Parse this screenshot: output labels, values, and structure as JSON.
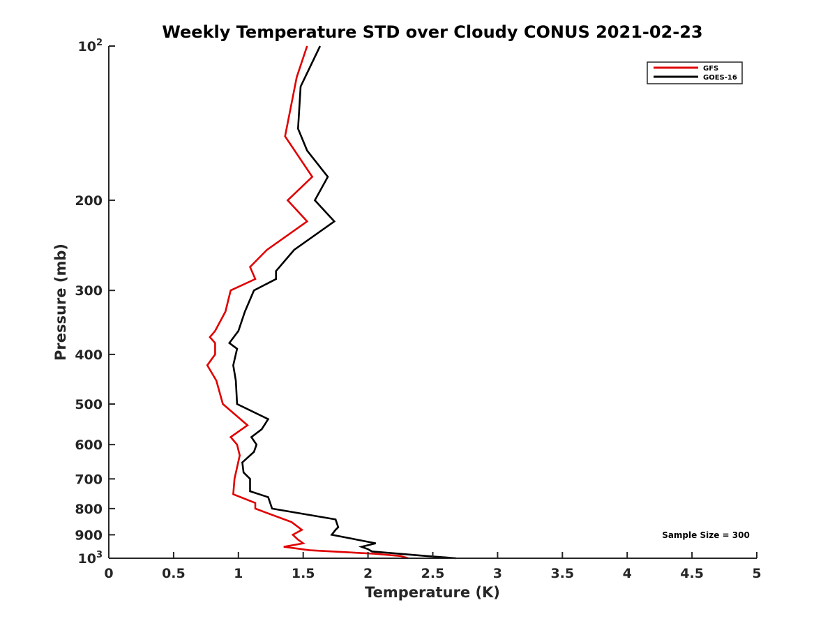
{
  "chart_data": {
    "type": "line",
    "title": "Weekly Temperature STD over Cloudy CONUS 2021-02-23",
    "xlabel": "Temperature (K)",
    "ylabel": "Pressure (mb)",
    "xlim": [
      0,
      5
    ],
    "ylim": [
      100,
      1000
    ],
    "yscale": "log",
    "y_reversed": true,
    "grid": false,
    "legend_position": "top-right",
    "x_ticks": [
      0,
      0.5,
      1,
      1.5,
      2,
      2.5,
      3,
      3.5,
      4,
      4.5,
      5
    ],
    "x_tick_labels": [
      "0",
      "0.5",
      "1",
      "1.5",
      "2",
      "2.5",
      "3",
      "3.5",
      "4",
      "4.5",
      "5"
    ],
    "y_ticks": [
      100,
      200,
      300,
      400,
      500,
      600,
      700,
      800,
      900,
      1000
    ],
    "y_tick_labels": [
      {
        "base": "10",
        "exp": "2"
      },
      {
        "base": "200",
        "exp": ""
      },
      {
        "base": "300",
        "exp": ""
      },
      {
        "base": "400",
        "exp": ""
      },
      {
        "base": "500",
        "exp": ""
      },
      {
        "base": "600",
        "exp": ""
      },
      {
        "base": "700",
        "exp": ""
      },
      {
        "base": "800",
        "exp": ""
      },
      {
        "base": "900",
        "exp": ""
      },
      {
        "base": "10",
        "exp": "3"
      }
    ],
    "annotation": "Sample Size = 300",
    "series": [
      {
        "name": "GFS",
        "color": "#e00000",
        "points": [
          [
            1.53,
            100
          ],
          [
            1.45,
            115
          ],
          [
            1.36,
            150
          ],
          [
            1.57,
            180
          ],
          [
            1.38,
            200
          ],
          [
            1.53,
            220
          ],
          [
            1.22,
            250
          ],
          [
            1.09,
            270
          ],
          [
            1.13,
            285
          ],
          [
            0.94,
            300
          ],
          [
            0.9,
            330
          ],
          [
            0.82,
            360
          ],
          [
            0.78,
            370
          ],
          [
            0.82,
            380
          ],
          [
            0.82,
            400
          ],
          [
            0.76,
            420
          ],
          [
            0.83,
            450
          ],
          [
            0.88,
            500
          ],
          [
            1.07,
            550
          ],
          [
            0.94,
            580
          ],
          [
            0.99,
            600
          ],
          [
            1.01,
            630
          ],
          [
            0.97,
            700
          ],
          [
            0.96,
            750
          ],
          [
            1.13,
            780
          ],
          [
            1.13,
            800
          ],
          [
            1.41,
            850
          ],
          [
            1.49,
            880
          ],
          [
            1.42,
            900
          ],
          [
            1.46,
            920
          ],
          [
            1.5,
            935
          ],
          [
            1.35,
            950
          ],
          [
            1.55,
            965
          ],
          [
            2.05,
            980
          ],
          [
            2.25,
            990
          ],
          [
            2.31,
            1000
          ]
        ]
      },
      {
        "name": "GOES-16",
        "color": "#000000",
        "points": [
          [
            1.63,
            100
          ],
          [
            1.48,
            120
          ],
          [
            1.46,
            145
          ],
          [
            1.53,
            160
          ],
          [
            1.69,
            180
          ],
          [
            1.59,
            200
          ],
          [
            1.74,
            220
          ],
          [
            1.43,
            250
          ],
          [
            1.29,
            275
          ],
          [
            1.29,
            285
          ],
          [
            1.12,
            300
          ],
          [
            1.05,
            330
          ],
          [
            1.0,
            360
          ],
          [
            0.93,
            380
          ],
          [
            0.99,
            390
          ],
          [
            0.96,
            420
          ],
          [
            0.98,
            450
          ],
          [
            0.99,
            500
          ],
          [
            1.23,
            535
          ],
          [
            1.18,
            560
          ],
          [
            1.1,
            580
          ],
          [
            1.14,
            600
          ],
          [
            1.12,
            620
          ],
          [
            1.03,
            650
          ],
          [
            1.04,
            680
          ],
          [
            1.09,
            700
          ],
          [
            1.09,
            740
          ],
          [
            1.23,
            760
          ],
          [
            1.26,
            800
          ],
          [
            1.75,
            840
          ],
          [
            1.77,
            870
          ],
          [
            1.75,
            880
          ],
          [
            1.72,
            900
          ],
          [
            2.06,
            935
          ],
          [
            1.95,
            950
          ],
          [
            2.0,
            960
          ],
          [
            2.03,
            970
          ],
          [
            2.45,
            990
          ],
          [
            2.68,
            1000
          ]
        ]
      }
    ]
  }
}
